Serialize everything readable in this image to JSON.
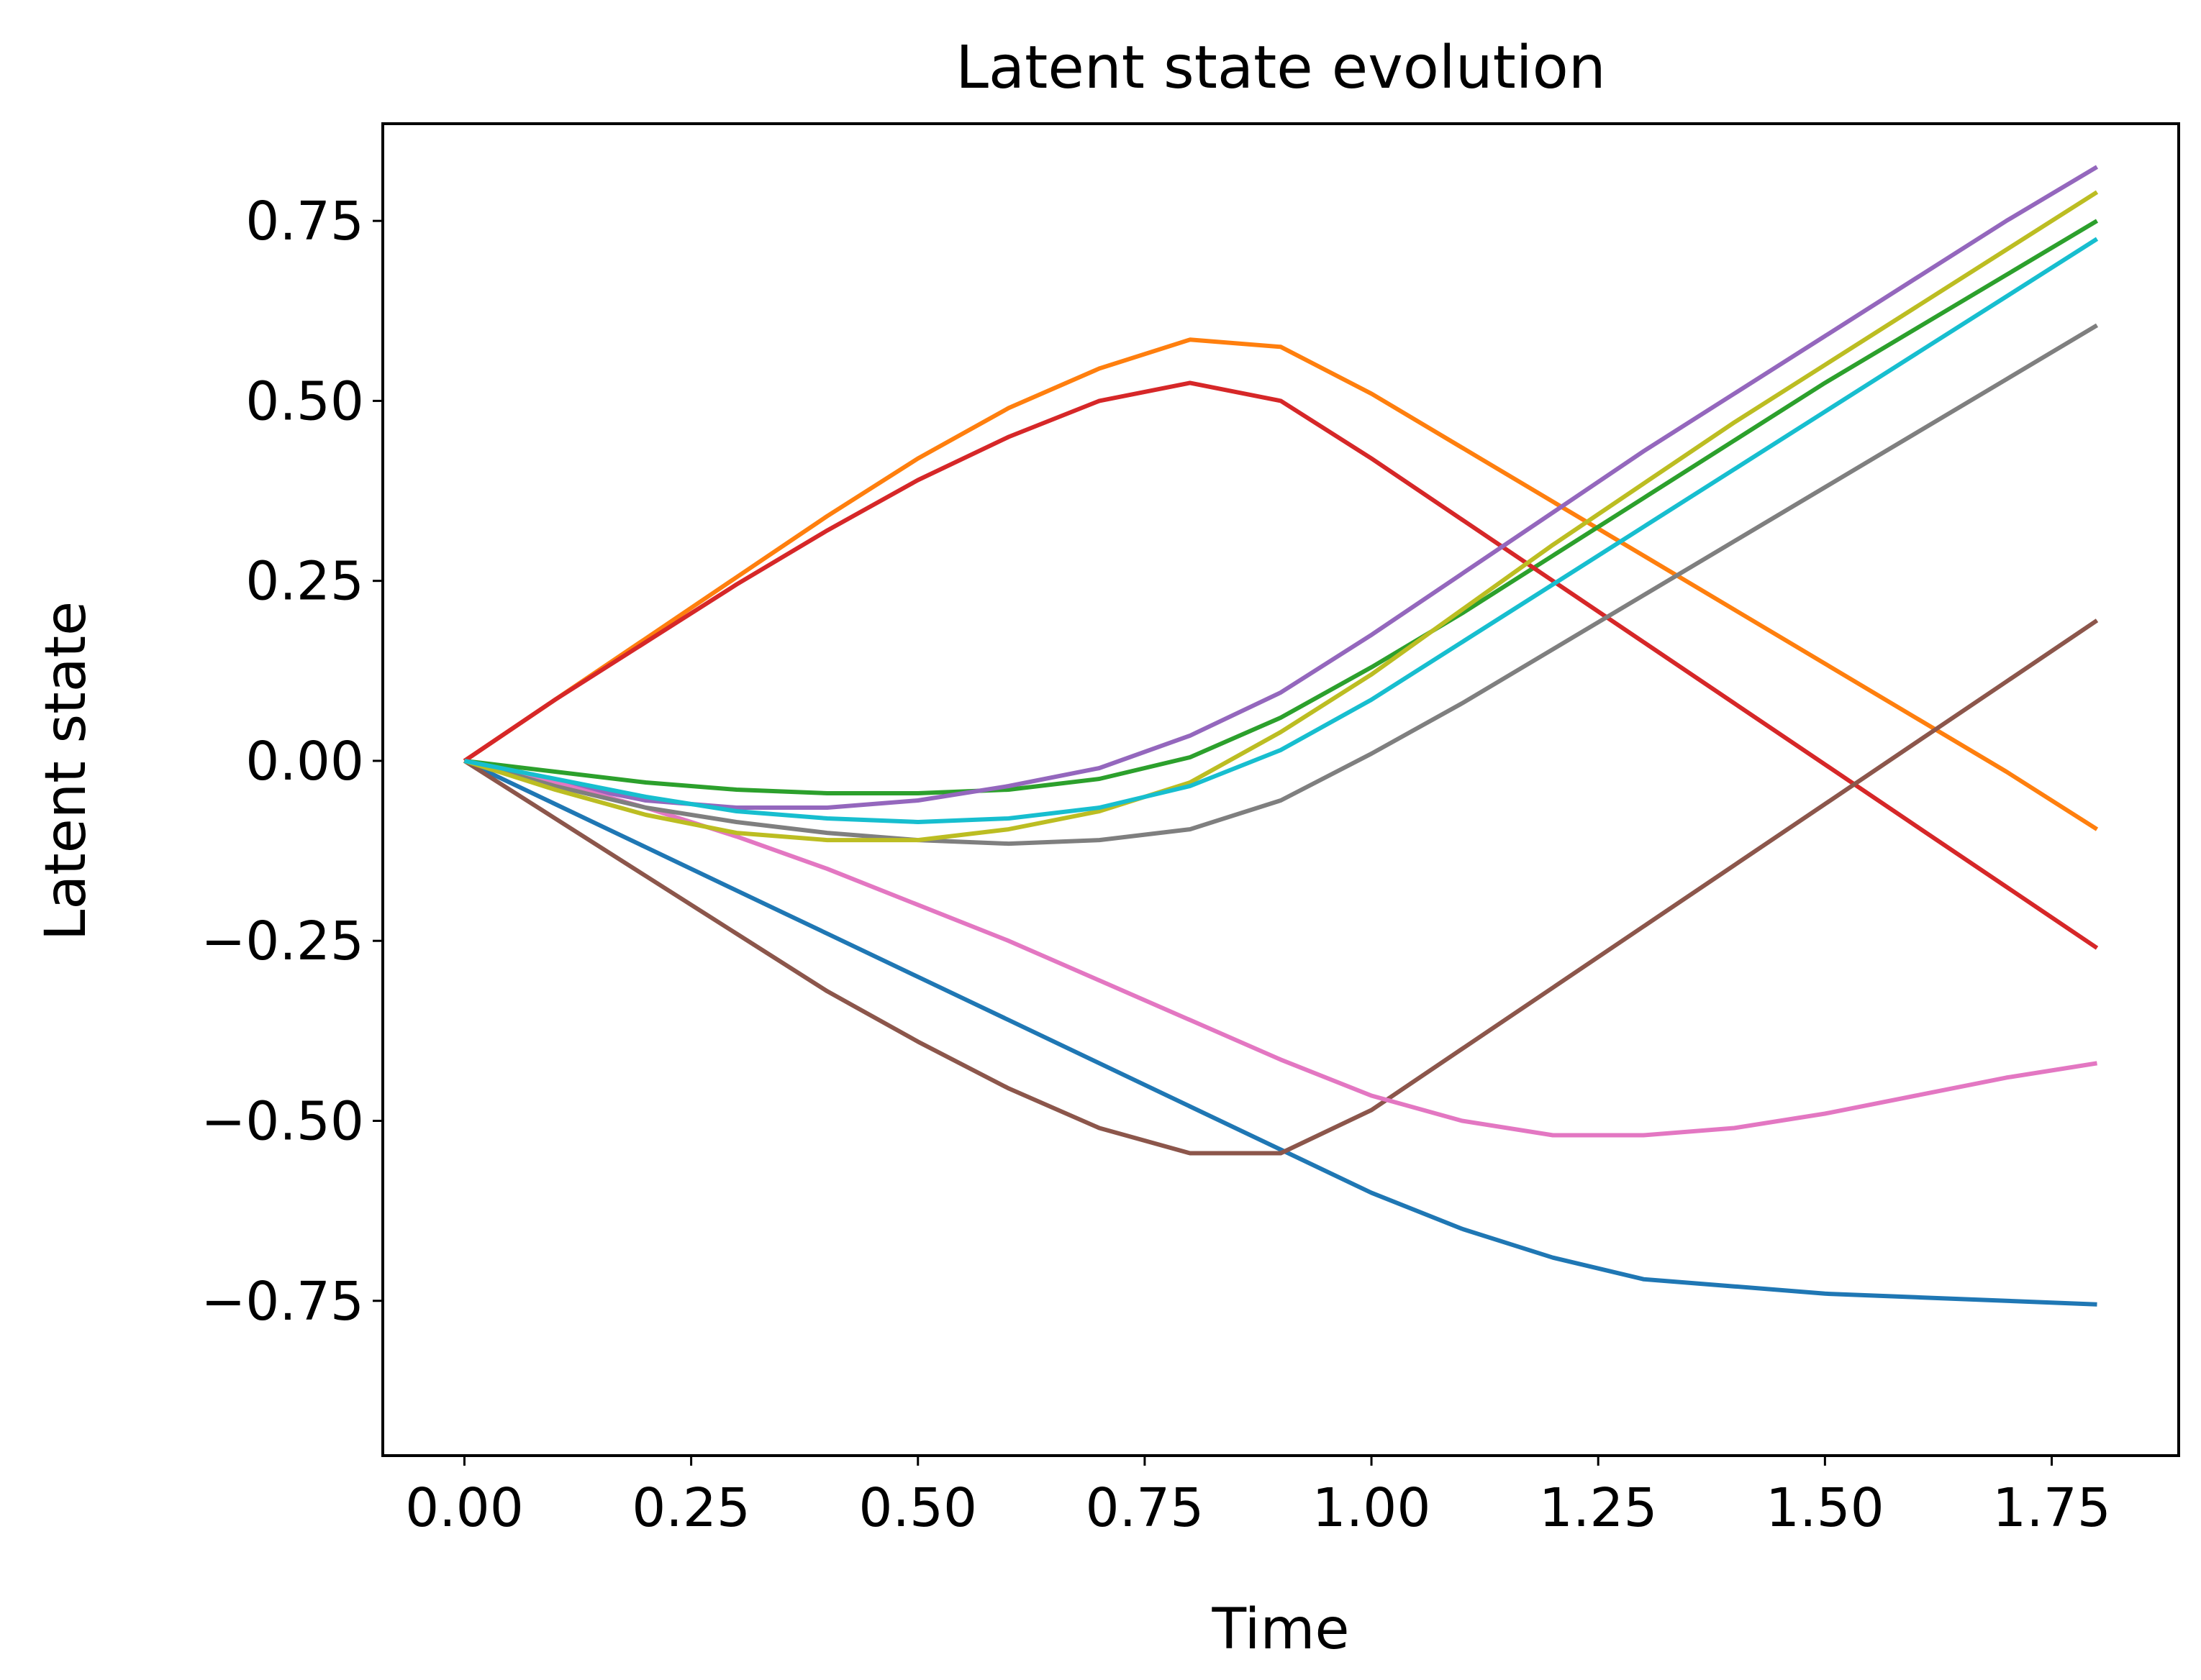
{
  "chart_data": {
    "type": "line",
    "title": "Latent state evolution",
    "xlabel": "Time",
    "ylabel": "Latent state",
    "xlim": [
      -0.09,
      1.89
    ],
    "ylim": [
      -0.965,
      0.885
    ],
    "xticks": [
      0.0,
      0.25,
      0.5,
      0.75,
      1.0,
      1.25,
      1.5,
      1.75
    ],
    "xtick_labels": [
      "0.00",
      "0.25",
      "0.50",
      "0.75",
      "1.00",
      "1.25",
      "1.50",
      "1.75"
    ],
    "yticks": [
      -0.75,
      -0.5,
      -0.25,
      0.0,
      0.25,
      0.5,
      0.75
    ],
    "ytick_labels": [
      "−0.75",
      "−0.50",
      "−0.25",
      "0.00",
      "0.25",
      "0.50",
      "0.75"
    ],
    "grid": false,
    "legend": "none",
    "x": [
      0.0,
      0.1,
      0.2,
      0.3,
      0.4,
      0.5,
      0.6,
      0.7,
      0.8,
      0.9,
      1.0,
      1.1,
      1.2,
      1.3,
      1.4,
      1.5,
      1.6,
      1.7,
      1.8
    ],
    "series": [
      {
        "color": "#1f77b4",
        "values": [
          0.0,
          -0.06,
          -0.12,
          -0.18,
          -0.24,
          -0.3,
          -0.36,
          -0.42,
          -0.48,
          -0.54,
          -0.6,
          -0.65,
          -0.69,
          -0.72,
          -0.73,
          -0.74,
          -0.745,
          -0.75,
          -0.755
        ]
      },
      {
        "color": "#ff7f0e",
        "values": [
          0.0,
          0.085,
          0.17,
          0.255,
          0.34,
          0.42,
          0.49,
          0.545,
          0.585,
          0.575,
          0.51,
          0.435,
          0.36,
          0.285,
          0.21,
          0.135,
          0.06,
          -0.015,
          -0.095
        ]
      },
      {
        "color": "#2ca02c",
        "values": [
          0.0,
          -0.015,
          -0.03,
          -0.04,
          -0.045,
          -0.045,
          -0.04,
          -0.025,
          0.005,
          0.06,
          0.13,
          0.205,
          0.285,
          0.365,
          0.445,
          0.525,
          0.6,
          0.675,
          0.75
        ]
      },
      {
        "color": "#d62728",
        "values": [
          0.0,
          0.085,
          0.165,
          0.245,
          0.32,
          0.39,
          0.45,
          0.5,
          0.525,
          0.5,
          0.42,
          0.335,
          0.25,
          0.165,
          0.08,
          -0.005,
          -0.09,
          -0.175,
          -0.26
        ]
      },
      {
        "color": "#9467bd",
        "values": [
          0.0,
          -0.03,
          -0.055,
          -0.065,
          -0.065,
          -0.055,
          -0.035,
          -0.01,
          0.035,
          0.095,
          0.175,
          0.26,
          0.345,
          0.43,
          0.51,
          0.59,
          0.67,
          0.75,
          0.825
        ]
      },
      {
        "color": "#8c564b",
        "values": [
          0.0,
          -0.08,
          -0.16,
          -0.24,
          -0.32,
          -0.39,
          -0.455,
          -0.51,
          -0.545,
          -0.545,
          -0.485,
          -0.4,
          -0.315,
          -0.23,
          -0.145,
          -0.06,
          0.025,
          0.11,
          0.195
        ]
      },
      {
        "color": "#e377c2",
        "values": [
          0.0,
          -0.03,
          -0.065,
          -0.105,
          -0.15,
          -0.2,
          -0.25,
          -0.305,
          -0.36,
          -0.415,
          -0.465,
          -0.5,
          -0.52,
          -0.52,
          -0.51,
          -0.49,
          -0.465,
          -0.44,
          -0.42
        ]
      },
      {
        "color": "#7f7f7f",
        "values": [
          0.0,
          -0.035,
          -0.065,
          -0.085,
          -0.1,
          -0.11,
          -0.115,
          -0.11,
          -0.095,
          -0.055,
          0.01,
          0.08,
          0.155,
          0.23,
          0.305,
          0.38,
          0.455,
          0.53,
          0.605
        ]
      },
      {
        "color": "#bcbd22",
        "values": [
          0.0,
          -0.04,
          -0.075,
          -0.1,
          -0.11,
          -0.11,
          -0.095,
          -0.07,
          -0.03,
          0.04,
          0.12,
          0.21,
          0.3,
          0.385,
          0.47,
          0.55,
          0.63,
          0.71,
          0.79
        ]
      },
      {
        "color": "#17becf",
        "values": [
          0.0,
          -0.025,
          -0.05,
          -0.07,
          -0.08,
          -0.085,
          -0.08,
          -0.065,
          -0.035,
          0.015,
          0.085,
          0.165,
          0.245,
          0.325,
          0.405,
          0.485,
          0.565,
          0.645,
          0.725
        ]
      }
    ]
  }
}
